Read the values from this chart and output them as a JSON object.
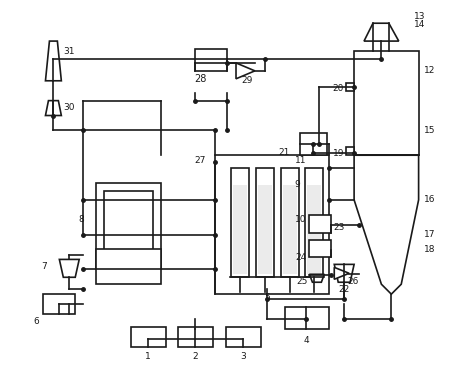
{
  "bg_color": "#ffffff",
  "line_color": "#1a1a1a",
  "line_width": 1.2,
  "label_fontsize": 6.5,
  "fig_width": 4.74,
  "fig_height": 3.66
}
